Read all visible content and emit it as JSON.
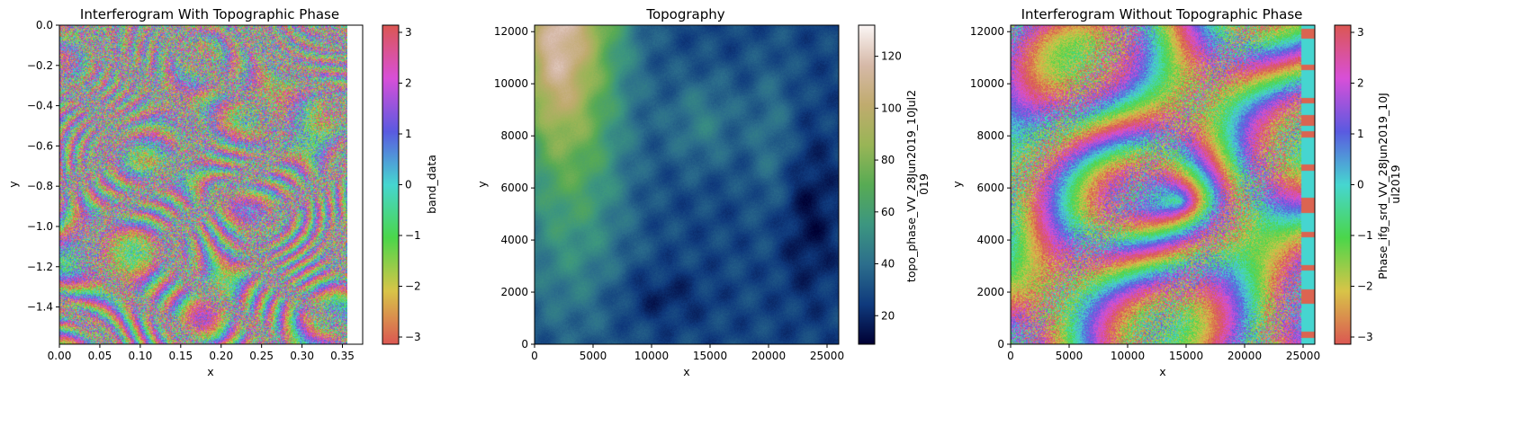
{
  "chart_data": [
    {
      "type": "heatmap",
      "title": "Interferogram With Topographic Phase",
      "xlabel": "x",
      "ylabel": "y",
      "xlim": [
        0.0,
        0.375
      ],
      "ylim": [
        -1.585,
        0.0
      ],
      "x_ticks": [
        "0.00",
        "0.05",
        "0.10",
        "0.15",
        "0.20",
        "0.25",
        "0.30",
        "0.35"
      ],
      "y_ticks": [
        "0.0",
        "−0.2",
        "−0.4",
        "−0.6",
        "−0.8",
        "−1.0",
        "−1.2",
        "−1.4"
      ],
      "data_extent": {
        "x": [
          0.0,
          0.355
        ],
        "y": [
          -1.585,
          0.0
        ]
      },
      "colorbar": {
        "label": "band_data",
        "range": [
          -3.14159,
          3.14159
        ],
        "ticks": [
          "3",
          "2",
          "1",
          "0",
          "−1",
          "−2",
          "−3"
        ],
        "colormap": "phase",
        "colors": [
          "#db5752",
          "#d8c448",
          "#4bd64a",
          "#46d6d0",
          "#5a5ae0",
          "#d84fd8",
          "#db5752"
        ]
      }
    },
    {
      "type": "heatmap",
      "title": "Topography",
      "xlabel": "x",
      "ylabel": "y",
      "xlim": [
        0,
        26000
      ],
      "ylim": [
        0,
        12250
      ],
      "x_ticks": [
        "0",
        "5000",
        "10000",
        "15000",
        "20000",
        "25000"
      ],
      "y_ticks": [
        "0",
        "2000",
        "4000",
        "6000",
        "8000",
        "10000",
        "12000"
      ],
      "colorbar": {
        "label": "topo_phase_VV_28Jun2019_10Jul2\n019",
        "range": [
          9,
          132
        ],
        "ticks": [
          "20",
          "40",
          "60",
          "80",
          "100",
          "120"
        ],
        "colormap": "gist_earth",
        "colors": [
          "#000033",
          "#0f3a7d",
          "#2c6e8c",
          "#3c9680",
          "#58ab54",
          "#99b556",
          "#c0ab6e",
          "#d6b9a8",
          "#fbf6f5"
        ]
      }
    },
    {
      "type": "heatmap",
      "title": "Interferogram Without Topographic Phase",
      "xlabel": "x",
      "ylabel": "y",
      "xlim": [
        0,
        26000
      ],
      "ylim": [
        0,
        12250
      ],
      "x_ticks": [
        "0",
        "5000",
        "10000",
        "15000",
        "20000",
        "25000"
      ],
      "y_ticks": [
        "0",
        "2000",
        "4000",
        "6000",
        "8000",
        "10000",
        "12000"
      ],
      "colorbar": {
        "label": "Phase_ifg_srd_VV_28Jun2019_10J\nul2019",
        "range": [
          -3.14159,
          3.14159
        ],
        "ticks": [
          "3",
          "2",
          "1",
          "0",
          "−1",
          "−2",
          "−3"
        ],
        "colormap": "phase",
        "colors": [
          "#db5752",
          "#d8c448",
          "#4bd64a",
          "#46d6d0",
          "#5a5ae0",
          "#d84fd8",
          "#db5752"
        ]
      }
    }
  ]
}
